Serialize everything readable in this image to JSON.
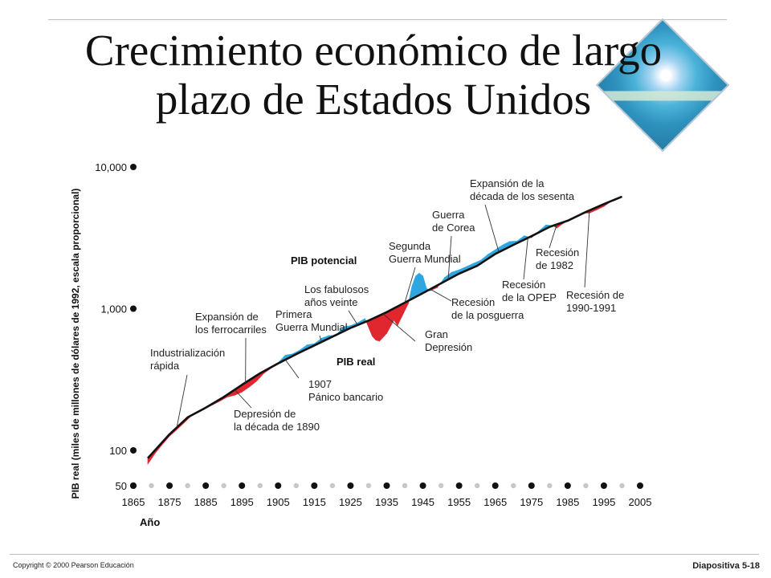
{
  "slide": {
    "title": "Crecimiento económico de largo plazo de Estados Unidos",
    "copyright": "Copyright © 2000 Pearson Educación",
    "slide_number": "Diapositiva 5-18"
  },
  "chart_data": {
    "type": "line",
    "title": "",
    "xlabel": "Año",
    "ylabel": "PIB real (miles de millones de dólares de 1992, escala proporcional)",
    "y_scale": "log",
    "ylim": [
      50,
      10000
    ],
    "xlim": [
      1865,
      2005
    ],
    "yticks": [
      50,
      100,
      1000,
      10000
    ],
    "ytick_labels": [
      "50",
      "100",
      "1,000",
      "10,000"
    ],
    "xticks": [
      1865,
      1875,
      1885,
      1895,
      1905,
      1915,
      1925,
      1935,
      1945,
      1955,
      1965,
      1975,
      1985,
      1995,
      2005
    ],
    "xtick_labels": [
      "1865",
      "1875",
      "1885",
      "1895",
      "1905",
      "1915",
      "1925",
      "1935",
      "1945",
      "1955",
      "1965",
      "1975",
      "1985",
      "1995",
      "2005"
    ],
    "grid": false,
    "legend": "none",
    "colors": {
      "above": "#2ea7e0",
      "below": "#e0262f",
      "line": "#111111",
      "points": "#111111",
      "minor_points": "#c8c8c8"
    },
    "series": [
      {
        "name": "PIB potencial",
        "x": [
          1869,
          1875,
          1880,
          1885,
          1890,
          1895,
          1900,
          1905,
          1910,
          1915,
          1920,
          1925,
          1930,
          1935,
          1940,
          1945,
          1950,
          1955,
          1960,
          1965,
          1970,
          1975,
          1980,
          1985,
          1990,
          1995,
          2000
        ],
        "y": [
          88,
          130,
          171,
          200,
          238,
          290,
          350,
          411,
          477,
          550,
          634,
          730,
          824,
          945,
          1103,
          1288,
          1509,
          1765,
          2008,
          2435,
          2820,
          3247,
          3780,
          4180,
          4810,
          5470,
          6180
        ]
      },
      {
        "name": "PIB real",
        "x": [
          1869,
          1871,
          1873,
          1875,
          1877,
          1879,
          1881,
          1883,
          1885,
          1887,
          1889,
          1891,
          1893,
          1895,
          1897,
          1899,
          1901,
          1903,
          1905,
          1907,
          1909,
          1911,
          1913,
          1915,
          1917,
          1919,
          1921,
          1923,
          1925,
          1927,
          1929,
          1931,
          1932,
          1933,
          1935,
          1937,
          1938,
          1939,
          1941,
          1942,
          1943,
          1944,
          1945,
          1946,
          1947,
          1949,
          1951,
          1953,
          1955,
          1957,
          1959,
          1961,
          1963,
          1965,
          1967,
          1969,
          1971,
          1973,
          1975,
          1977,
          1979,
          1981,
          1982,
          1983,
          1985,
          1987,
          1989,
          1991,
          1993,
          1995,
          1997,
          2000
        ],
        "y": [
          80,
          95,
          110,
          126,
          140,
          156,
          175,
          188,
          198,
          210,
          223,
          238,
          245,
          258,
          280,
          307,
          349,
          379,
          415,
          470,
          480,
          510,
          555,
          566,
          619,
          645,
          648,
          744,
          759,
          796,
          852,
          640,
          600,
          590,
          670,
          830,
          760,
          860,
          1090,
          1450,
          1700,
          1780,
          1700,
          1390,
          1340,
          1410,
          1660,
          1810,
          1880,
          1980,
          2090,
          2200,
          2420,
          2605,
          2810,
          2980,
          3000,
          3270,
          3170,
          3520,
          3900,
          3860,
          3700,
          3880,
          4190,
          4430,
          4740,
          4720,
          4980,
          5260,
          5720,
          6180
        ]
      }
    ],
    "labels": {
      "potential": "PIB potencial",
      "real": "PIB real"
    },
    "annotations": [
      {
        "id": "industrializacion",
        "lines": [
          "Industrialización",
          "rápida"
        ],
        "year": 1877
      },
      {
        "id": "ferrocarriles",
        "lines": [
          "Expansión de",
          "los ferrocarriles"
        ],
        "year": 1896
      },
      {
        "id": "depresion-1890",
        "lines": [
          "Depresión de",
          "la década de 1890"
        ],
        "year": 1893
      },
      {
        "id": "primera-guerra",
        "lines": [
          "Primera",
          "Guerra Mundial"
        ],
        "year": 1917
      },
      {
        "id": "panico-1907",
        "lines": [
          "1907",
          "Pánico bancario"
        ],
        "year": 1907
      },
      {
        "id": "anos-veinte",
        "lines": [
          "Los fabulosos",
          "años veinte"
        ],
        "year": 1927
      },
      {
        "id": "segunda-guerra",
        "lines": [
          "Segunda",
          "Guerra Mundial"
        ],
        "year": 1940
      },
      {
        "id": "gran-depresion",
        "lines": [
          "Gran",
          "Depresión"
        ],
        "year": 1934
      },
      {
        "id": "posguerra",
        "lines": [
          "Recesión",
          "de la posguerra"
        ],
        "year": 1947
      },
      {
        "id": "guerra-corea",
        "lines": [
          "Guerra",
          "de Corea"
        ],
        "year": 1952
      },
      {
        "id": "anos-sesenta",
        "lines": [
          "Expansión de la",
          "década de los sesenta"
        ],
        "year": 1966
      },
      {
        "id": "opep",
        "lines": [
          "Recesión",
          "de la OPEP"
        ],
        "year": 1974
      },
      {
        "id": "recesion-1982",
        "lines": [
          "Recesión",
          "de 1982"
        ],
        "year": 1982
      },
      {
        "id": "recesion-1990",
        "lines": [
          "Recesión de",
          "1990-1991"
        ],
        "year": 1991
      }
    ]
  }
}
